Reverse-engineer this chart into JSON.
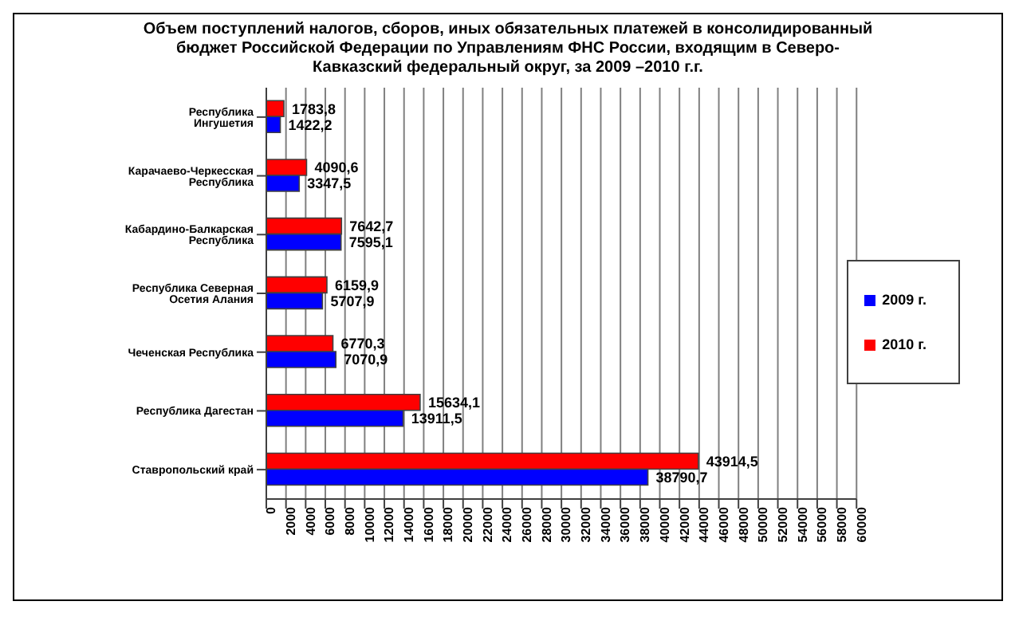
{
  "chart_data": {
    "type": "bar",
    "orientation": "horizontal",
    "title": "Объем поступлений налогов, сборов, иных обязательных платежей в консолидированный бюджет Российской Федерации по Управлениям ФНС России, входящим в Северо-Кавказский федеральный округ, за 2009 –2010 г.г.",
    "categories": [
      "Республика Ингушетия",
      "Карачаево-Черкесская Республика",
      "Кабардино-Балкарская Республика",
      "Республика Северная Осетия Алания",
      "Чеченская Республика",
      "Республика Дагестан",
      "Ставропольский край"
    ],
    "series": [
      {
        "name": "2010 г.",
        "color": "#ff0000",
        "values": [
          1783.8,
          4090.6,
          7642.7,
          6159.9,
          6770.3,
          15634.1,
          43914.5
        ],
        "value_labels": [
          "1783,8",
          "4090,6",
          "7642,7",
          "6159,9",
          "6770,3",
          "15634,1",
          "43914,5"
        ]
      },
      {
        "name": "2009 г.",
        "color": "#0000ff",
        "values": [
          1422.2,
          3347.5,
          7595.1,
          5707.9,
          7070.9,
          13911.5,
          38790.7
        ],
        "value_labels": [
          "1422,2",
          "3347,5",
          "7595,1",
          "5707,9",
          "7070,9",
          "13911,5",
          "38790,7"
        ]
      }
    ],
    "xlim": [
      0,
      60000
    ],
    "xticks": [
      0,
      2000,
      4000,
      6000,
      8000,
      10000,
      12000,
      14000,
      16000,
      18000,
      20000,
      22000,
      24000,
      26000,
      28000,
      30000,
      32000,
      34000,
      36000,
      38000,
      40000,
      42000,
      44000,
      46000,
      48000,
      50000,
      52000,
      54000,
      56000,
      58000,
      60000
    ],
    "grid": "x",
    "legend": "right"
  }
}
